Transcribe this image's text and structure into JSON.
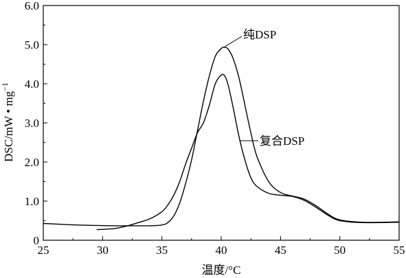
{
  "chart_data": {
    "type": "line",
    "title": "",
    "xlabel": "温度/°C",
    "ylabel": "DSC/mW • mg",
    "ylabel_superscript": "−1",
    "xlim": [
      25,
      55
    ],
    "ylim": [
      0,
      6
    ],
    "xticks": [
      25,
      30,
      35,
      40,
      45,
      50,
      55
    ],
    "yticks": [
      0,
      1.0,
      2.0,
      3.0,
      4.0,
      5.0,
      6.0
    ],
    "xtick_labels": [
      "25",
      "30",
      "35",
      "40",
      "45",
      "50",
      "55"
    ],
    "ytick_labels": [
      "0",
      "1.0",
      "2.0",
      "3.0",
      "4.0",
      "5.0",
      "6.0"
    ],
    "grid": false,
    "series": [
      {
        "name": "纯DSP",
        "color": "#000000",
        "x": [
          25,
          27,
          29,
          31,
          33,
          34,
          35,
          35.5,
          36,
          36.5,
          37,
          37.5,
          38,
          38.5,
          39,
          39.5,
          40,
          40.3,
          40.6,
          41,
          41.5,
          42,
          42.5,
          43,
          44,
          45,
          46,
          47,
          48,
          49,
          50,
          52,
          55
        ],
        "y": [
          0.43,
          0.4,
          0.38,
          0.37,
          0.37,
          0.37,
          0.39,
          0.45,
          0.62,
          0.95,
          1.45,
          2.05,
          2.8,
          3.55,
          4.2,
          4.7,
          4.9,
          4.93,
          4.88,
          4.65,
          4.15,
          3.45,
          2.75,
          2.15,
          1.5,
          1.22,
          1.13,
          1.05,
          0.88,
          0.67,
          0.52,
          0.46,
          0.47
        ]
      },
      {
        "name": "复合DSP",
        "color": "#000000",
        "x": [
          29.5,
          31,
          32,
          33,
          34,
          35,
          35.5,
          36,
          36.5,
          37,
          37.5,
          38,
          38.5,
          39,
          39.5,
          40,
          40.3,
          40.6,
          41,
          41.5,
          42,
          42.5,
          43,
          44,
          45,
          46,
          47,
          48,
          49,
          50,
          52,
          55
        ],
        "y": [
          0.27,
          0.3,
          0.36,
          0.45,
          0.55,
          0.73,
          0.9,
          1.15,
          1.5,
          1.95,
          2.35,
          2.75,
          3.0,
          3.45,
          4.0,
          4.22,
          4.2,
          3.95,
          3.4,
          2.65,
          2.05,
          1.6,
          1.38,
          1.2,
          1.15,
          1.12,
          1.02,
          0.84,
          0.64,
          0.5,
          0.45,
          0.46
        ]
      }
    ],
    "annotations": [
      {
        "text": "纯DSP",
        "series": 0,
        "x": 40.3,
        "y": 4.93
      },
      {
        "text": "复合DSP",
        "series": 1,
        "x": 41.7,
        "y": 2.5
      }
    ]
  }
}
